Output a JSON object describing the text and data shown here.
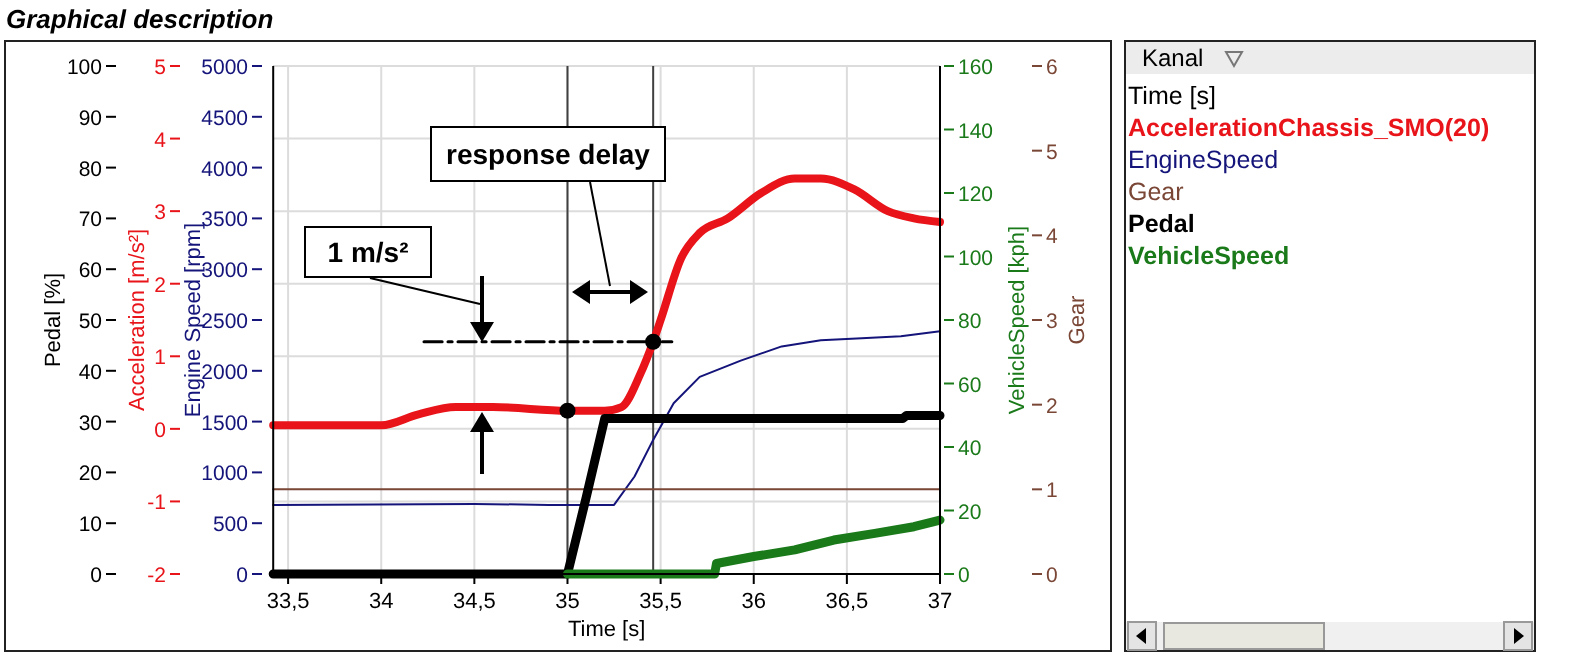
{
  "chart_data": [
    {
      "type": "line",
      "title": "Graphical description",
      "xlabel": "Time [s]",
      "ylabel": "Acceleration [m/s²]",
      "y2label": "Engine Speed [rpm]",
      "y3label": "Gear",
      "legend_title": "Kanal",
      "legend": "right",
      "grid": true,
      "xlim": [
        33.42,
        37
      ],
      "xticks": [
        {
          "value": 33.5,
          "label": "33,5"
        },
        34,
        {
          "value": 34.5,
          "label": "34,5"
        },
        35,
        {
          "value": 35.5,
          "label": "35,5"
        },
        36,
        {
          "value": 36.5,
          "label": "36,5"
        },
        37
      ],
      "ylim": [
        -2,
        5
      ],
      "yticks": [
        -2,
        -1,
        0,
        1,
        2,
        3,
        4,
        5
      ],
      "y2lim": [
        0,
        5000
      ],
      "y2ticks": [
        0,
        500,
        1000,
        1500,
        2000,
        2500,
        3000,
        3500,
        4000,
        4500,
        5000
      ],
      "y3lim": [
        0,
        6
      ],
      "y3ticks": [
        0,
        1,
        2,
        3,
        4,
        5,
        6
      ],
      "ref_lines": [
        {
          "axis": "x",
          "value": 35,
          "color": "#404040"
        },
        {
          "axis": "x",
          "value": 35.46,
          "color": "#404040"
        }
      ],
      "annotations": [
        "response delay",
        "1 m/s²"
      ],
      "series": [
        {
          "name": "AccelerationChassis_SMO(20)",
          "color": "#e8141a",
          "x": [
            33.42,
            34.0,
            34.2,
            34.4,
            34.6,
            35.0,
            35.2,
            35.29,
            35.39,
            35.46,
            35.5,
            35.61,
            35.71,
            35.86,
            36.04,
            36.22,
            36.36,
            36.54,
            36.72,
            36.86,
            37
          ],
          "values": [
            0.05,
            0.05,
            0.2,
            0.3,
            0.3,
            0.25,
            0.25,
            0.3,
            0.75,
            1.2,
            1.5,
            2.35,
            2.7,
            2.9,
            3.25,
            3.45,
            3.45,
            3.3,
            3.0,
            2.9,
            2.85
          ]
        },
        {
          "name": "EngineSpeed",
          "axis": "y2",
          "color": "#14147a",
          "x": [
            33.42,
            34.5,
            34.9,
            35.25,
            35.36,
            35.46,
            35.57,
            35.71,
            35.93,
            36.15,
            36.36,
            36.58,
            36.79,
            37
          ],
          "values": [
            680,
            690,
            680,
            680,
            960,
            1320,
            1680,
            1940,
            2100,
            2240,
            2300,
            2320,
            2340,
            2390
          ]
        },
        {
          "name": "Gear",
          "axis": "y3",
          "color": "#7a4636",
          "x": [
            33.42,
            37
          ],
          "values": [
            1,
            1
          ]
        },
        {
          "color": "#000000",
          "line_style": "dashed",
          "x": [
            34.23,
            35.56
          ],
          "values": [
            1.2,
            1.2
          ]
        },
        {
          "type": "scatter",
          "color": "#000000",
          "marker": "circle",
          "x": [
            35,
            35.46
          ],
          "values": [
            0.25,
            1.2
          ]
        }
      ]
    },
    {
      "type": "line",
      "ylabel": "Pedal [%]",
      "y2label": "VehicleSpeed [kph]",
      "legend": "right",
      "tick_labels": "y",
      "xlim": [
        33.42,
        37
      ],
      "ylim": [
        0,
        100
      ],
      "yticks": [
        0,
        10,
        20,
        30,
        40,
        50,
        60,
        70,
        80,
        90,
        100
      ],
      "y2lim": [
        0,
        160
      ],
      "y2ticks": [
        0,
        20,
        40,
        60,
        80,
        100,
        120,
        140,
        160
      ],
      "series": [
        {
          "name": "Pedal",
          "color": "#000000",
          "x": [
            33.42,
            35,
            35.02,
            35.1,
            35.2,
            36.8,
            36.82,
            37
          ],
          "values": [
            0,
            0,
            3,
            15,
            30.6,
            30.6,
            31.2,
            31.2
          ]
        },
        {
          "name": "VehicleSpeed",
          "axis": "y2",
          "color": "#1a7a1a",
          "x": [
            35,
            35.79,
            35.8,
            36.0,
            36.22,
            36.43,
            36.65,
            36.86,
            37
          ],
          "values": [
            0,
            0,
            3.3,
            5.5,
            7.6,
            10.7,
            12.8,
            14.9,
            17
          ]
        }
      ]
    }
  ]
}
